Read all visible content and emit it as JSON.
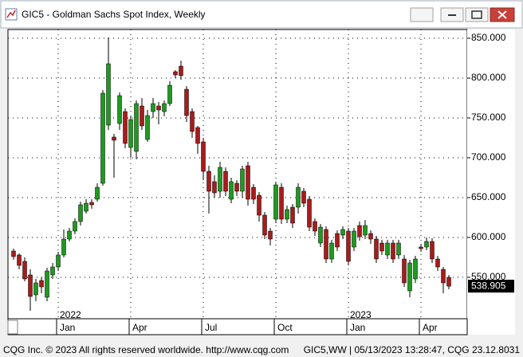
{
  "chart_data": {
    "type": "candlestick",
    "title": "GIC5 - Goldman Sachs Spot Index, Weekly",
    "categories": [
      null,
      null,
      null,
      null,
      null,
      null,
      null,
      null,
      "Jan",
      null,
      null,
      null,
      null,
      null,
      null,
      null,
      null,
      null,
      null,
      null,
      null,
      "Apr",
      null,
      null,
      null,
      null,
      null,
      null,
      null,
      null,
      null,
      null,
      null,
      null,
      "Jul",
      null,
      null,
      null,
      null,
      null,
      null,
      null,
      null,
      null,
      null,
      null,
      null,
      "Oct",
      null,
      null,
      null,
      null,
      null,
      null,
      null,
      null,
      null,
      null,
      null,
      null,
      "Jan",
      null,
      null,
      null,
      null,
      null,
      null,
      null,
      null,
      null,
      null,
      null,
      null,
      "Apr",
      null,
      null,
      null,
      null,
      null
    ],
    "category_years": [
      null,
      null,
      null,
      null,
      null,
      null,
      null,
      null,
      "2022",
      null,
      null,
      null,
      null,
      null,
      null,
      null,
      null,
      null,
      null,
      null,
      null,
      null,
      null,
      null,
      null,
      null,
      null,
      null,
      null,
      null,
      null,
      null,
      null,
      null,
      null,
      null,
      null,
      null,
      null,
      null,
      null,
      null,
      null,
      null,
      null,
      null,
      null,
      null,
      null,
      null,
      null,
      null,
      null,
      null,
      null,
      null,
      null,
      null,
      null,
      null,
      "2023",
      null,
      null,
      null,
      null,
      null,
      null,
      null,
      null,
      null,
      null,
      null,
      null,
      null,
      null,
      null,
      null,
      null,
      null
    ],
    "open": [
      583,
      578,
      570,
      553,
      528,
      546,
      525,
      553,
      563,
      578,
      598,
      608,
      620,
      633,
      644,
      648,
      668,
      741,
      726,
      743,
      758,
      713,
      708,
      765,
      723,
      758,
      765,
      758,
      768,
      808,
      815,
      786,
      758,
      738,
      720,
      683,
      670,
      658,
      683,
      648,
      668,
      658,
      690,
      663,
      653,
      628,
      608,
      623,
      663,
      623,
      638,
      638,
      658,
      648,
      620,
      593,
      610,
      573,
      605,
      603,
      608,
      588,
      615,
      603,
      605,
      598,
      593,
      578,
      593,
      578,
      573,
      533,
      548,
      588,
      588,
      595,
      573,
      560,
      550
    ],
    "high": [
      586,
      580,
      575,
      560,
      548,
      550,
      562,
      568,
      582,
      610,
      612,
      624,
      645,
      648,
      648,
      668,
      785,
      851,
      730,
      782,
      762,
      752,
      772,
      775,
      760,
      775,
      770,
      772,
      796,
      810,
      822,
      790,
      762,
      740,
      725,
      690,
      678,
      695,
      688,
      675,
      672,
      690,
      695,
      667,
      657,
      632,
      612,
      670,
      668,
      640,
      642,
      668,
      662,
      652,
      624,
      617,
      614,
      597,
      609,
      614,
      612,
      612,
      620,
      622,
      609,
      602,
      597,
      597,
      597,
      597,
      578,
      572,
      577,
      592,
      600,
      599,
      577,
      563,
      553
    ],
    "low": [
      572,
      560,
      545,
      508,
      520,
      530,
      520,
      548,
      558,
      575,
      595,
      604,
      615,
      630,
      636,
      645,
      665,
      735,
      675,
      735,
      712,
      700,
      698,
      735,
      720,
      750,
      742,
      752,
      765,
      800,
      798,
      745,
      725,
      705,
      672,
      630,
      650,
      650,
      652,
      643,
      652,
      650,
      640,
      642,
      620,
      598,
      590,
      618,
      617,
      618,
      612,
      630,
      638,
      608,
      602,
      588,
      568,
      568,
      583,
      598,
      565,
      583,
      596,
      598,
      592,
      568,
      578,
      573,
      568,
      573,
      538,
      525,
      543,
      582,
      584,
      568,
      558,
      530,
      535
    ],
    "close": [
      576,
      565,
      548,
      526,
      543,
      538,
      558,
      563,
      578,
      598,
      608,
      620,
      641,
      643,
      641,
      663,
      781,
      818,
      722,
      778,
      718,
      748,
      768,
      740,
      753,
      768,
      760,
      768,
      791,
      804,
      803,
      753,
      733,
      718,
      683,
      658,
      656,
      688,
      658,
      670,
      658,
      686,
      648,
      648,
      628,
      603,
      598,
      666,
      623,
      635,
      618,
      663,
      643,
      613,
      608,
      613,
      573,
      593,
      588,
      610,
      570,
      608,
      601,
      615,
      598,
      573,
      583,
      593,
      573,
      593,
      543,
      568,
      573,
      586,
      595,
      573,
      563,
      543,
      538.905
    ],
    "up_color": "#1f9a1f",
    "down_color": "#a81c1c",
    "ylim": [
      498,
      861
    ],
    "yticks": [
      {
        "value": 550,
        "label": "550.000"
      },
      {
        "value": 600,
        "label": "600.000"
      },
      {
        "value": 650,
        "label": "650.000"
      },
      {
        "value": 700,
        "label": "700.000"
      },
      {
        "value": 750,
        "label": "750.000"
      },
      {
        "value": 800,
        "label": "800.000"
      },
      {
        "value": 850,
        "label": "850.000"
      }
    ],
    "grid": true
  },
  "footer": {
    "left": "CQG Inc. © 2023 All rights reserved worldwide. http://www.cqg.com",
    "right": "GIC5,WW | 05/13/2023 13:28:47, CQG 23.12.8031"
  }
}
